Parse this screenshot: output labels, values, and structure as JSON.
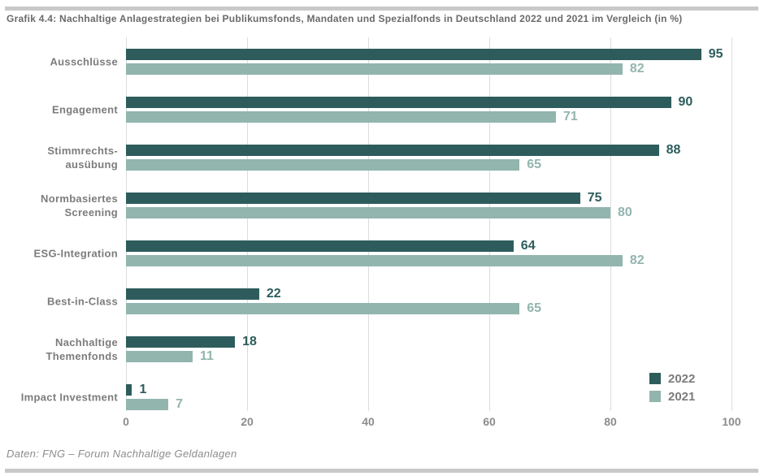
{
  "title": "Grafik 4.4: Nachhaltige Anlagestrategien bei Publikumsfonds, Mandaten und Spezialfonds in Deutschland 2022 und 2021 im Vergleich (in %)",
  "source": "Daten: FNG – Forum Nachhaltige Geldanlagen",
  "colors": {
    "bar_2022": "#2e5c5c",
    "bar_2021": "#92b5ae",
    "gridline": "#dbdedd",
    "title_text": "#6a6a6a",
    "category_text": "#7c7c7c",
    "tick_text": "#8c8c8c",
    "rule": "#c9c9c9"
  },
  "chart_data": {
    "type": "bar",
    "orientation": "horizontal",
    "title": "Grafik 4.4: Nachhaltige Anlagestrategien bei Publikumsfonds, Mandaten und Spezialfonds in Deutschland 2022 und 2021 im Vergleich (in %)",
    "categories": [
      "Ausschlüsse",
      "Engagement",
      "Stimmrechts-\nausübung",
      "Normbasiertes\nScreening",
      "ESG-Integration",
      "Best-in-Class",
      "Nachhaltige\nThemenfonds",
      "Impact Investment"
    ],
    "series": [
      {
        "name": "2022",
        "color": "#2e5c5c",
        "values": [
          95,
          90,
          88,
          75,
          64,
          22,
          18,
          1
        ]
      },
      {
        "name": "2021",
        "color": "#92b5ae",
        "values": [
          82,
          71,
          65,
          80,
          82,
          65,
          11,
          7
        ]
      }
    ],
    "x_ticks": [
      0,
      20,
      40,
      60,
      80,
      100
    ],
    "xlim": [
      0,
      100
    ],
    "xlabel": "",
    "ylabel": "",
    "grid": true,
    "legend_position": "bottom-right",
    "value_labels": true
  }
}
